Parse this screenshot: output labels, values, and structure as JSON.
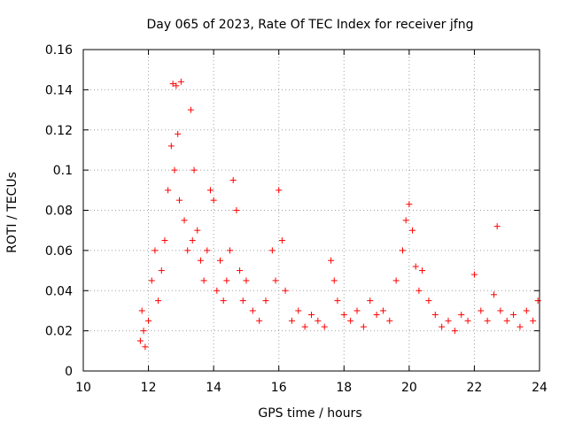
{
  "chart_data": {
    "type": "scatter",
    "title": "Day 065 of 2023, Rate Of TEC Index for receiver jfng",
    "xlabel": "GPS time / hours",
    "ylabel": "ROTI / TECUs",
    "xlim": [
      10,
      24
    ],
    "ylim": [
      0,
      0.16
    ],
    "x_ticks": [
      10,
      12,
      14,
      16,
      18,
      20,
      22,
      24
    ],
    "x_tick_labels": [
      "10",
      "12",
      "14",
      "16",
      "18",
      "20",
      "22",
      "24"
    ],
    "y_ticks": [
      0,
      0.02,
      0.04,
      0.06,
      0.08,
      0.1,
      0.12,
      0.14,
      0.16
    ],
    "y_tick_labels": [
      "0",
      "0.02",
      "0.04",
      "0.06",
      "0.08",
      "0.1",
      "0.12",
      "0.14",
      "0.16"
    ],
    "grid": true,
    "marker": "+",
    "marker_color": "#ff0000",
    "series": [
      {
        "name": "ROTI",
        "x": [
          11.75,
          11.8,
          11.85,
          11.9,
          12.0,
          12.1,
          12.2,
          12.3,
          12.4,
          12.5,
          12.6,
          12.7,
          12.75,
          12.8,
          12.85,
          12.9,
          12.95,
          13.0,
          13.1,
          13.2,
          13.3,
          13.35,
          13.4,
          13.5,
          13.6,
          13.7,
          13.8,
          13.9,
          14.0,
          14.1,
          14.2,
          14.3,
          14.4,
          14.5,
          14.6,
          14.7,
          14.8,
          14.9,
          15.0,
          15.2,
          15.4,
          15.6,
          15.8,
          15.9,
          16.0,
          16.1,
          16.2,
          16.4,
          16.6,
          16.8,
          17.0,
          17.2,
          17.4,
          17.6,
          17.7,
          17.8,
          18.0,
          18.2,
          18.4,
          18.6,
          18.8,
          19.0,
          19.2,
          19.4,
          19.6,
          19.8,
          19.9,
          20.0,
          20.1,
          20.2,
          20.3,
          20.4,
          20.6,
          20.8,
          21.0,
          21.2,
          21.4,
          21.6,
          21.8,
          22.0,
          22.2,
          22.4,
          22.6,
          22.7,
          22.8,
          23.0,
          23.2,
          23.4,
          23.6,
          23.8,
          23.95
        ],
        "y": [
          0.015,
          0.03,
          0.02,
          0.012,
          0.025,
          0.045,
          0.06,
          0.035,
          0.05,
          0.065,
          0.09,
          0.112,
          0.143,
          0.1,
          0.142,
          0.118,
          0.085,
          0.144,
          0.075,
          0.06,
          0.13,
          0.065,
          0.1,
          0.07,
          0.055,
          0.045,
          0.06,
          0.09,
          0.085,
          0.04,
          0.055,
          0.035,
          0.045,
          0.06,
          0.095,
          0.08,
          0.05,
          0.035,
          0.045,
          0.03,
          0.025,
          0.035,
          0.06,
          0.045,
          0.09,
          0.065,
          0.04,
          0.025,
          0.03,
          0.022,
          0.028,
          0.025,
          0.022,
          0.055,
          0.045,
          0.035,
          0.028,
          0.025,
          0.03,
          0.022,
          0.035,
          0.028,
          0.03,
          0.025,
          0.045,
          0.06,
          0.075,
          0.083,
          0.07,
          0.052,
          0.04,
          0.05,
          0.035,
          0.028,
          0.022,
          0.025,
          0.02,
          0.028,
          0.025,
          0.048,
          0.03,
          0.025,
          0.038,
          0.072,
          0.03,
          0.025,
          0.028,
          0.022,
          0.03,
          0.025,
          0.035
        ]
      }
    ]
  }
}
